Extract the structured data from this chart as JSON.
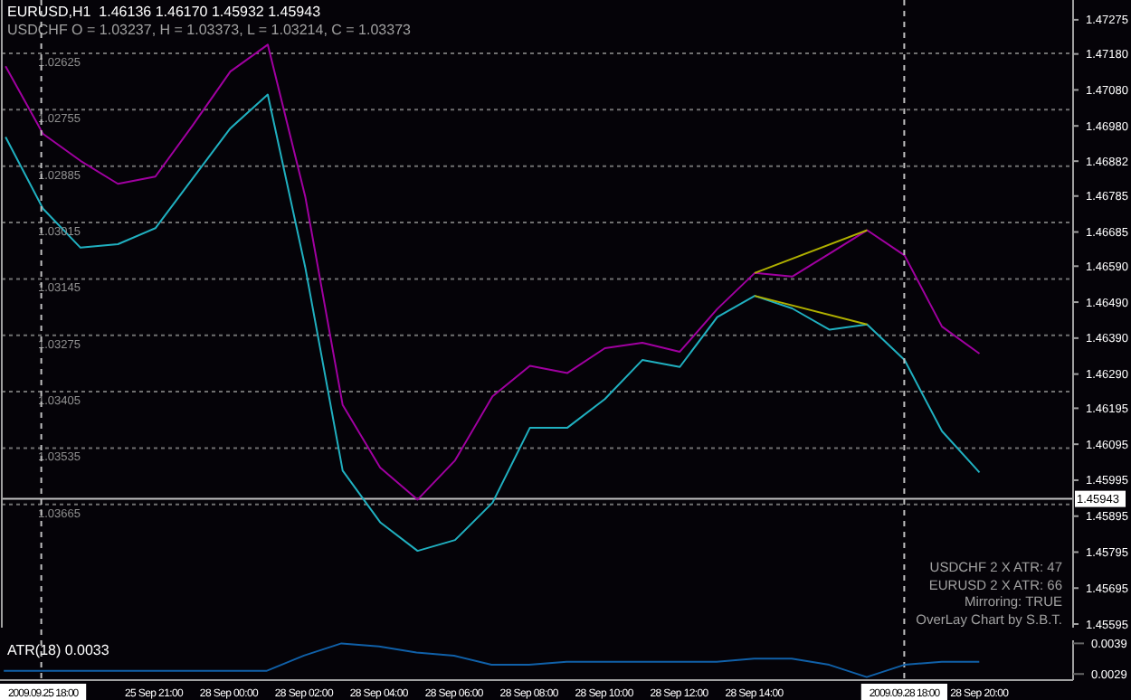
{
  "chart_data": [
    {
      "type": "line",
      "title": "EURUSD,H1  1.46136 1.46170 1.45932 1.45943",
      "subtitle": "USDCHF O = 1.03237, H = 1.03373, L = 1.03214, C = 1.03373",
      "categories": [
        null,
        null,
        null,
        null,
        null,
        null,
        null,
        null,
        null,
        null,
        null,
        null,
        null,
        null,
        null,
        null,
        null,
        null,
        null,
        null,
        null,
        null,
        null,
        null,
        null,
        null,
        null
      ],
      "series": [
        {
          "color": "#a000a0",
          "axis": "y2",
          "values": [
            1.47146,
            1.46958,
            1.46883,
            1.46819,
            1.46839,
            1.46982,
            1.47131,
            1.47206,
            1.46784,
            1.46204,
            1.4603,
            1.45941,
            1.4605,
            1.46228,
            1.46313,
            1.46293,
            1.46362,
            1.46377,
            1.46352,
            1.46471,
            1.46571,
            1.46561,
            1.46625,
            1.4669,
            1.4662,
            1.46422,
            1.46347
          ]
        },
        {
          "color": "#20b0c0",
          "values": [
            1.02818,
            1.02983,
            1.03073,
            1.03065,
            1.03028,
            1.02913,
            1.02798,
            1.0272,
            1.03118,
            1.03587,
            1.03706,
            1.03772,
            1.03747,
            1.03661,
            1.03488,
            1.03488,
            1.03422,
            1.03332,
            1.03348,
            1.03233,
            1.03184,
            1.03213,
            1.03262,
            1.0325,
            1.03332,
            1.03496,
            1.03591
          ]
        },
        {
          "color": "#b0b000",
          "axis": "y2",
          "values": [
            null,
            null,
            null,
            null,
            null,
            null,
            null,
            null,
            null,
            null,
            null,
            null,
            null,
            null,
            null,
            null,
            null,
            null,
            null,
            null,
            1.46571,
            null,
            null,
            1.4669,
            null,
            null,
            null
          ]
        },
        {
          "color": "#b0b000",
          "values": [
            null,
            null,
            null,
            null,
            null,
            null,
            null,
            null,
            null,
            null,
            null,
            null,
            null,
            null,
            null,
            null,
            null,
            null,
            null,
            null,
            1.03184,
            null,
            null,
            1.0325,
            null,
            null,
            null
          ]
        }
      ],
      "ylim": [
        1.03949,
        1.02502
      ],
      "yticks": [
        1.02625,
        1.02755,
        1.02885,
        1.03015,
        1.03145,
        1.03275,
        1.03405,
        1.03535,
        1.03665
      ],
      "y2lim": [
        1.45585,
        1.4733
      ],
      "y2ticks": [
        1.47275,
        {
          "value": 1.4718,
          "label": "1.47180"
        },
        {
          "value": 1.4708,
          "label": "1.47080"
        },
        {
          "value": 1.4698,
          "label": "1.46980"
        },
        1.46882,
        1.46785,
        1.46685,
        {
          "value": 1.4659,
          "label": "1.46590"
        },
        {
          "value": 1.4649,
          "label": "1.46490"
        },
        {
          "value": 1.4639,
          "label": "1.46390"
        },
        {
          "value": 1.4629,
          "label": "1.46290"
        },
        1.46195,
        1.46095,
        1.45995,
        1.45895,
        1.45795,
        1.45695,
        1.45595
      ],
      "grid": "y",
      "tick_labels": "y",
      "marker": "none",
      "line_style": "solid",
      "ref_lines": [
        {
          "axis": "y2",
          "value": 1.45943,
          "label": "1.45943",
          "color": "#c0c0c0",
          "line_style": "solid"
        }
      ],
      "annotations": [
        "USDCHF 2 X ATR: 47",
        "EURUSD 2 X ATR: 66",
        "Mirroring: TRUE",
        "OverLay Chart by S.B.T."
      ]
    },
    {
      "type": "line",
      "title": "ATR(18) 0.0033",
      "categories": [
        null,
        "2009.09.25 18:00",
        null,
        null,
        "25 Sep 21:00",
        null,
        "28 Sep 00:00",
        null,
        "28 Sep 02:00",
        null,
        "28 Sep 04:00",
        null,
        "28 Sep 06:00",
        null,
        "28 Sep 08:00",
        null,
        "28 Sep 10:00",
        null,
        "28 Sep 12:00",
        null,
        "28 Sep 14:00",
        null,
        null,
        null,
        "2009.09.28 18:00",
        null,
        "28 Sep 20:00"
      ],
      "series": [
        {
          "color": "#1060a8",
          "values": [
            0.003,
            0.003,
            0.003,
            0.003,
            0.003,
            0.003,
            0.003,
            0.003,
            0.0035,
            0.0039,
            0.0038,
            0.0036,
            0.0035,
            0.0032,
            0.0032,
            0.0033,
            0.0033,
            0.0033,
            0.0033,
            0.0033,
            0.0034,
            0.0034,
            0.0032,
            0.0028,
            0.0032,
            0.0033,
            0.0033
          ]
        }
      ],
      "ylim": [
        0.0027,
        0.004
      ],
      "yticks": [
        0.0039,
        0.0029
      ],
      "marker": "none",
      "line_style": "solid",
      "ref_lines": [
        {
          "axis": "x",
          "value": "2009.09.25 18:00",
          "color": "#c0c0c0",
          "line_style": "dashed"
        },
        {
          "axis": "x",
          "value": "2009.09.28 18:00",
          "color": "#c0c0c0",
          "line_style": "dashed"
        }
      ]
    }
  ]
}
